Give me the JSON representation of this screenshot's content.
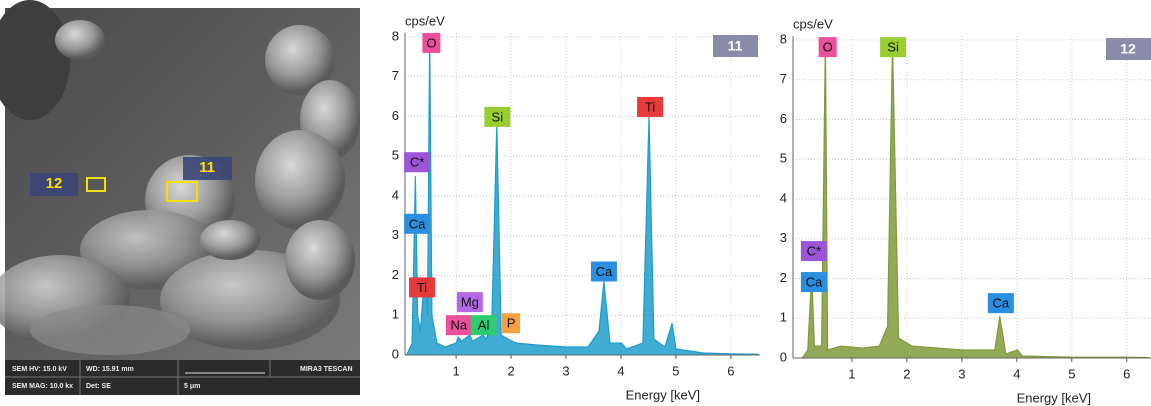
{
  "sem_image": {
    "labels": [
      "11",
      "12"
    ],
    "info": [
      "SEM HV: 15.0 kV",
      "WD: 15.91 mm",
      "MIRA3 TESCAN",
      "SEM MAG: 10.0 kx",
      "Det: SE",
      "5 μm"
    ]
  },
  "chart_data": [
    {
      "type": "area",
      "sample_label": "11",
      "ylabel": "cps/eV",
      "xlabel": "Energy [keV]",
      "color": "#1f9ccb",
      "grid": true,
      "xlim": [
        0.07,
        6.53
      ],
      "ylim": [
        0,
        8.1
      ],
      "xticks": [
        1,
        2,
        3,
        4,
        5,
        6
      ],
      "yticks": [
        0,
        1,
        2,
        3,
        4,
        5,
        6,
        7,
        8
      ],
      "x": [
        0.1,
        0.2,
        0.26,
        0.3,
        0.35,
        0.4,
        0.45,
        0.48,
        0.52,
        0.56,
        0.65,
        0.8,
        1.0,
        1.04,
        1.1,
        1.25,
        1.3,
        1.49,
        1.55,
        1.65,
        1.74,
        1.82,
        2.01,
        2.1,
        2.5,
        3.0,
        3.4,
        3.6,
        3.69,
        3.8,
        4.01,
        4.1,
        4.4,
        4.51,
        4.6,
        4.8,
        4.93,
        5.0,
        5.5,
        6.0,
        6.5
      ],
      "values": [
        0,
        0.3,
        4.5,
        1.0,
        0.6,
        1.5,
        1.7,
        1.0,
        8.0,
        1.0,
        0.3,
        0.2,
        0.3,
        0.45,
        0.35,
        0.5,
        0.35,
        0.5,
        0.4,
        0.8,
        5.8,
        0.5,
        0.35,
        0.3,
        0.25,
        0.2,
        0.2,
        0.6,
        1.85,
        0.3,
        0.3,
        0.15,
        0.3,
        6.0,
        0.4,
        0.2,
        0.8,
        0.15,
        0.05,
        0.03,
        0.02
      ],
      "annotations": [
        {
          "text": "O",
          "x": 0.55,
          "y": 7.85,
          "color": "#ec4f9b"
        },
        {
          "text": "C*",
          "x": 0.29,
          "y": 4.85,
          "color": "#9b55d6"
        },
        {
          "text": "Ca",
          "x": 0.29,
          "y": 3.3,
          "color": "#2a8fe0"
        },
        {
          "text": "Ti",
          "x": 0.38,
          "y": 1.7,
          "color": "#e83a3a"
        },
        {
          "text": "Mg",
          "x": 1.25,
          "y": 1.33,
          "color": "#b36ae6"
        },
        {
          "text": "Na",
          "x": 1.05,
          "y": 0.75,
          "color": "#ec4f9b"
        },
        {
          "text": "Al",
          "x": 1.5,
          "y": 0.75,
          "color": "#2ecc71"
        },
        {
          "text": "P",
          "x": 2.0,
          "y": 0.8,
          "color": "#f5a142"
        },
        {
          "text": "Si",
          "x": 1.75,
          "y": 5.99,
          "color": "#9acd32"
        },
        {
          "text": "Ca",
          "x": 3.69,
          "y": 2.1,
          "color": "#2a8fe0"
        },
        {
          "text": "Ti",
          "x": 4.53,
          "y": 6.24,
          "color": "#e83a3a"
        }
      ]
    },
    {
      "type": "area",
      "sample_label": "12",
      "ylabel": "cps/eV",
      "xlabel": "Energy [keV]",
      "color": "#7f9a3b",
      "grid": true,
      "xlim": [
        -0.07,
        6.44
      ],
      "ylim": [
        0,
        8.1
      ],
      "xticks": [
        1,
        2,
        3,
        4,
        5,
        6
      ],
      "yticks": [
        0,
        1,
        2,
        3,
        4,
        5,
        6,
        7,
        8
      ],
      "x": [
        0.1,
        0.2,
        0.27,
        0.32,
        0.45,
        0.52,
        0.56,
        0.8,
        1.2,
        1.5,
        1.65,
        1.74,
        1.85,
        2.1,
        3.0,
        3.6,
        3.69,
        3.8,
        4.01,
        4.1,
        5.0,
        6.0,
        6.4
      ],
      "values": [
        0,
        0.2,
        2.1,
        0.3,
        0.3,
        8.0,
        0.2,
        0.3,
        0.25,
        0.3,
        0.8,
        7.9,
        0.5,
        0.3,
        0.2,
        0.2,
        1.05,
        0.1,
        0.2,
        0.05,
        0.02,
        0.02,
        0.01
      ],
      "annotations": [
        {
          "text": "O",
          "x": 0.56,
          "y": 7.82,
          "color": "#ec4f9b"
        },
        {
          "text": "Si",
          "x": 1.75,
          "y": 7.82,
          "color": "#9acd32"
        },
        {
          "text": "C*",
          "x": 0.31,
          "y": 2.69,
          "color": "#9b55d6"
        },
        {
          "text": "Ca",
          "x": 0.31,
          "y": 1.91,
          "color": "#2a8fe0"
        },
        {
          "text": "Ca",
          "x": 3.71,
          "y": 1.38,
          "color": "#2a8fe0"
        }
      ]
    }
  ]
}
